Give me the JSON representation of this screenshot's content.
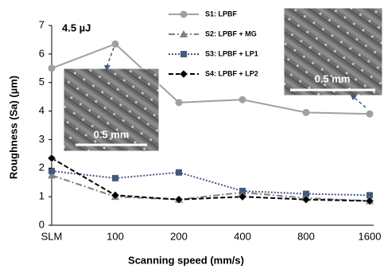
{
  "chart_data": {
    "type": "line",
    "x_label": "Scanning speed (mm/s)",
    "y_label": "Roughness (Sa) (µm)",
    "annotations": [
      "4.5 µJ",
      "0.5 mm",
      "0.5 mm"
    ],
    "categories": [
      "SLM",
      "100",
      "200",
      "400",
      "800",
      "1600"
    ],
    "series": [
      {
        "name": "S1: LPBF",
        "color": "#a0a0a0",
        "marker": "circle",
        "dash": "solid",
        "values": [
          5.5,
          6.35,
          4.3,
          4.4,
          3.95,
          3.9
        ]
      },
      {
        "name": "S2: LPBF + MG",
        "color": "#808080",
        "marker": "triangle",
        "dash": "dashdot",
        "values": [
          1.75,
          1.0,
          0.9,
          1.15,
          0.95,
          0.85
        ]
      },
      {
        "name": "S3: LPBF + LP1",
        "color": "#44597f",
        "marker": "square",
        "dash": "dotted",
        "values": [
          1.9,
          1.65,
          1.85,
          1.2,
          1.1,
          1.05
        ]
      },
      {
        "name": "S4: LPBF + LP2",
        "color": "#000000",
        "marker": "diamond",
        "dash": "dashed",
        "values": [
          2.35,
          1.05,
          0.9,
          1.0,
          0.9,
          0.85
        ]
      }
    ],
    "ylim": [
      0,
      7
    ],
    "yticks": [
      0,
      1,
      2,
      3,
      4,
      5,
      6,
      7
    ],
    "grid": false
  }
}
